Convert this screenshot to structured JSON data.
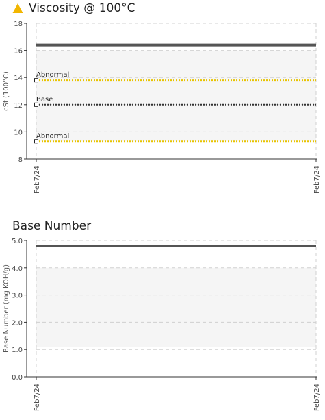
{
  "chart_data": [
    {
      "type": "line",
      "title": "Viscosity @ 100°C",
      "status_icon": "warning-triangle-icon",
      "status_color": "#f2b600",
      "ylabel": "cSt (100°C)",
      "ylim": [
        8,
        18
      ],
      "yticks": [
        8,
        10,
        12,
        14,
        16,
        18
      ],
      "ytick_labels": [
        "8",
        "10",
        "12",
        "14",
        "16",
        "18"
      ],
      "x": [
        "Feb7/24",
        "Feb7/24"
      ],
      "series": [
        {
          "values": [
            16.4,
            16.4
          ],
          "color": "#555555"
        }
      ],
      "shaded_band": [
        9.3,
        16.0
      ],
      "reference_lines": [
        {
          "label": "Abnormal",
          "value": 13.8,
          "color": "#e8c400",
          "style": "dotted"
        },
        {
          "label": "Base",
          "value": 12.0,
          "color": "#333333",
          "style": "dotted"
        },
        {
          "label": "Abnormal",
          "value": 9.3,
          "color": "#e8c400",
          "style": "dotted"
        }
      ],
      "grid": true
    },
    {
      "type": "line",
      "title": "Base Number",
      "ylabel": "Base Number (mg KOH/g)",
      "ylim": [
        0,
        5
      ],
      "yticks": [
        0,
        1,
        2,
        3,
        4,
        5
      ],
      "ytick_labels": [
        "0.0",
        "1.0",
        "2.0",
        "3.0",
        "4.0",
        "5.0"
      ],
      "x": [
        "Feb7/24",
        "Feb7/24"
      ],
      "series": [
        {
          "values": [
            4.8,
            4.8
          ],
          "color": "#555555"
        }
      ],
      "shaded_band": [
        1.1,
        4.0
      ],
      "reference_lines": [],
      "grid": true
    }
  ]
}
